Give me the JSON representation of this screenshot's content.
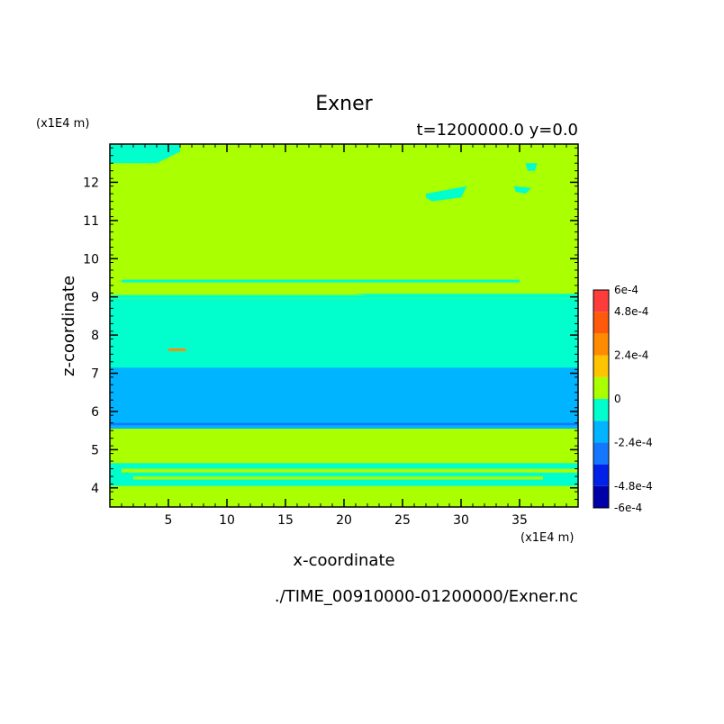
{
  "chart_data": {
    "type": "heatmap",
    "title": "Exner",
    "subtitle": "t=1200000.0 y=0.0",
    "xlabel": "x-coordinate",
    "ylabel": "z-coordinate",
    "x_unit_label": "(x1E4 m)",
    "y_unit_label": "(x1E4 m)",
    "source_label": "./TIME_00910000-01200000/Exner.nc",
    "xlim": [
      0,
      40
    ],
    "ylim": [
      3.5,
      13
    ],
    "x_ticks": [
      5,
      10,
      15,
      20,
      25,
      30,
      35
    ],
    "y_ticks": [
      4,
      5,
      6,
      7,
      8,
      9,
      10,
      11,
      12
    ],
    "x_minor_step": 1,
    "y_minor_step": 0.2,
    "colorbar": {
      "levels": [
        -0.0006,
        -0.00048,
        -0.00036,
        -0.00024,
        -0.00012,
        0,
        0.00012,
        0.00024,
        0.00036,
        0.00048,
        0.0006
      ],
      "colors": [
        "#0000a8",
        "#0022e8",
        "#1478ff",
        "#00b4ff",
        "#00ffcc",
        "#aaff00",
        "#ffc400",
        "#ff8c00",
        "#ff5a0a",
        "#ff3c3c"
      ],
      "tick_values": [
        0.0006,
        0.00048,
        0.00024,
        0,
        -0.00024,
        -0.00048,
        -0.0006
      ],
      "tick_labels": [
        "6e-4",
        "4.8e-4",
        "2.4e-4",
        "0",
        "-2.4e-4",
        "-4.8e-4",
        "-6e-4"
      ]
    },
    "background_value_class": 5,
    "bands": [
      {
        "z_min": 3.5,
        "z_max": 4.05,
        "class": 5
      },
      {
        "z_min": 4.05,
        "z_max": 4.65,
        "class": 4
      },
      {
        "z_min": 4.65,
        "z_max": 5.55,
        "class": 5
      },
      {
        "z_min": 5.55,
        "z_max": 7.2,
        "class": 3
      },
      {
        "z_min": 5.64,
        "z_max": 5.7,
        "class": 2
      },
      {
        "z_min": 7.2,
        "z_max": 8.95,
        "class": 4
      },
      {
        "z_min": 8.95,
        "z_max": 9.25,
        "class": 5
      },
      {
        "z_min": 9.25,
        "z_max": 13,
        "class": 5
      }
    ],
    "patches": [
      {
        "x": [
          0,
          6,
          6,
          4,
          0
        ],
        "z": [
          13,
          13,
          12.8,
          12.5,
          12.5
        ],
        "class": 4
      },
      {
        "x": [
          27,
          30.5,
          30,
          27.5,
          27
        ],
        "z": [
          11.7,
          11.9,
          11.6,
          11.5,
          11.6
        ],
        "class": 4
      },
      {
        "x": [
          34.5,
          36,
          35.5,
          34.7
        ],
        "z": [
          11.9,
          11.85,
          11.7,
          11.75
        ],
        "class": 4
      },
      {
        "x": [
          35.5,
          36.5,
          36.3,
          35.7
        ],
        "z": [
          12.5,
          12.5,
          12.3,
          12.3
        ],
        "class": 4
      },
      {
        "x": [
          1,
          35,
          35,
          1
        ],
        "z": [
          9.45,
          9.45,
          9.38,
          9.38
        ],
        "class": 4
      },
      {
        "x": [
          0,
          40,
          40,
          0
        ],
        "z": [
          9.08,
          9.08,
          8.95,
          8.95
        ],
        "class": 4
      },
      {
        "x": [
          0,
          20,
          22,
          0
        ],
        "z": [
          9.15,
          9.1,
          9.05,
          9.05
        ],
        "class": 5
      },
      {
        "x": [
          5,
          6.5,
          6.5,
          5
        ],
        "z": [
          7.65,
          7.65,
          7.58,
          7.58
        ],
        "class": 7
      },
      {
        "x": [
          0,
          40,
          40,
          0
        ],
        "z": [
          7.25,
          7.25,
          7.15,
          7.15
        ],
        "class": 4
      },
      {
        "x": [
          1,
          40,
          40,
          1
        ],
        "z": [
          4.5,
          4.5,
          4.4,
          4.4
        ],
        "class": 5
      },
      {
        "x": [
          2,
          37,
          37,
          2
        ],
        "z": [
          4.3,
          4.3,
          4.22,
          4.22
        ],
        "class": 5
      }
    ]
  }
}
